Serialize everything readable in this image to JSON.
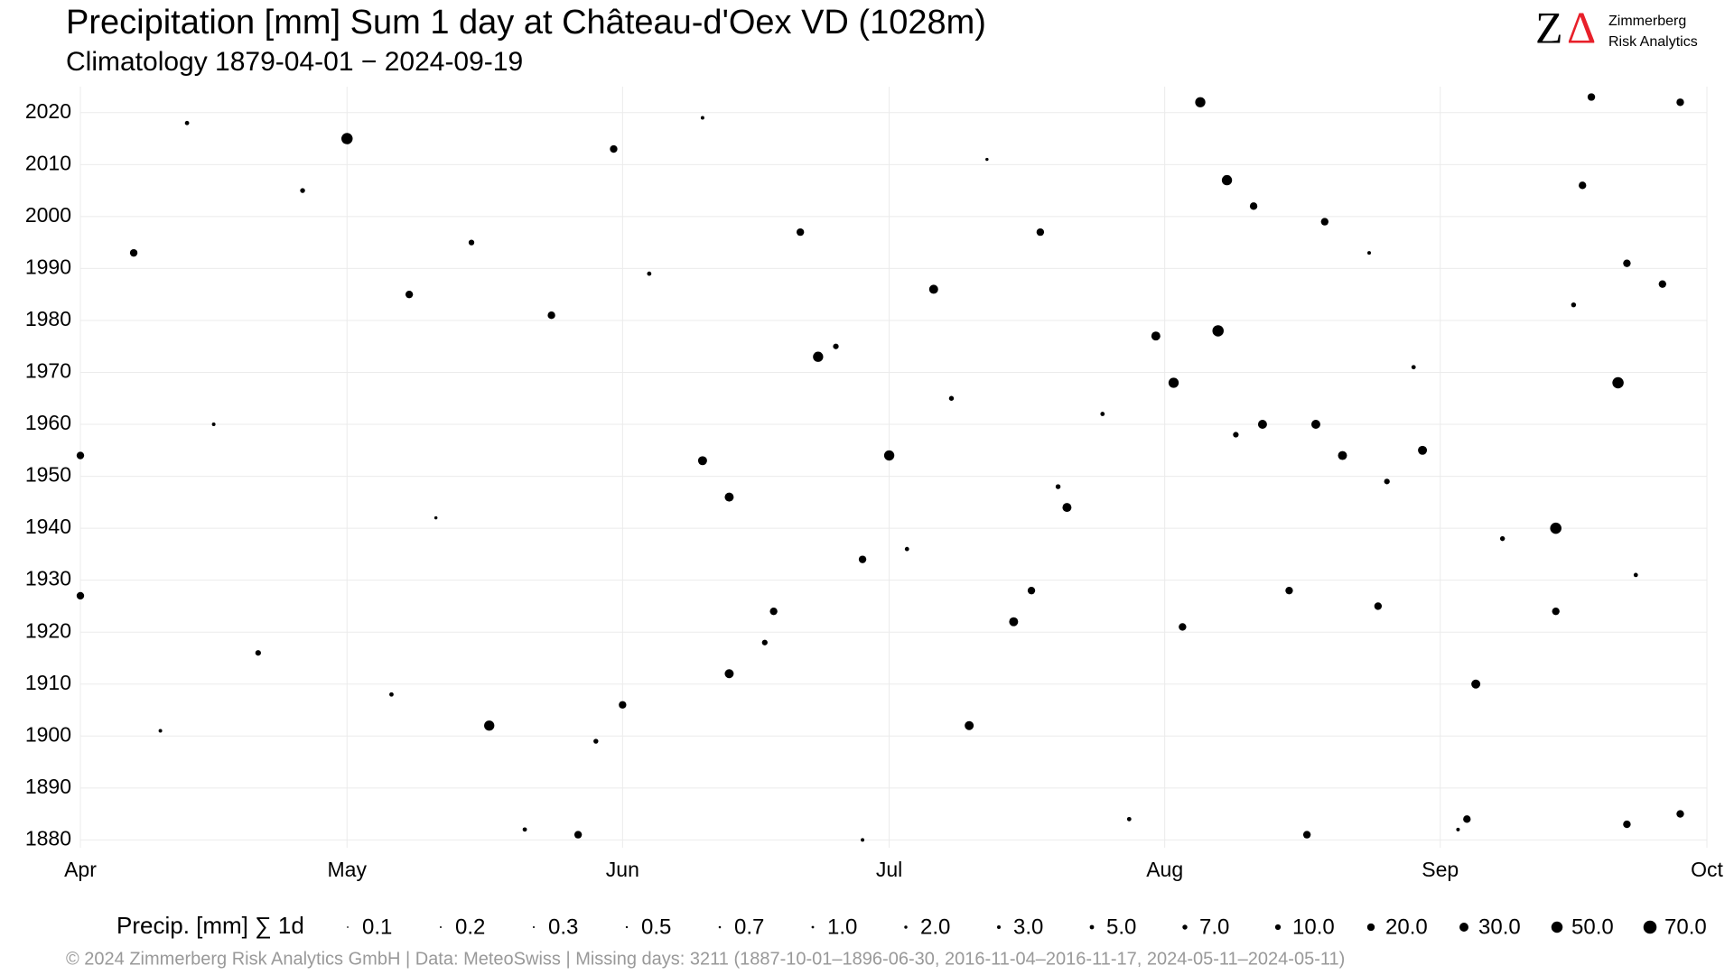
{
  "chart_data": {
    "type": "scatter",
    "title": "Precipitation [mm] Sum 1 day at Château-d'Oex  VD (1028m)",
    "subtitle": "Climatology 1879-04-01 − 2024-09-19",
    "caption": "©  2024 Zimmerberg Risk Analytics GmbH | Data: MeteoSwiss | Missing days: 3211 (1887-10-01–1896-06-30, 2016-11-04–2016-11-17, 2024-05-11–2024-05-11)",
    "logo": {
      "z": "Z",
      "delta": "Δ",
      "line1": "Zimmerberg",
      "line2": "Risk Analytics"
    },
    "xlim": [
      0,
      183
    ],
    "xticks": [
      {
        "value": 0,
        "label": "Apr"
      },
      {
        "value": 30,
        "label": "May"
      },
      {
        "value": 61,
        "label": "Jun"
      },
      {
        "value": 91,
        "label": "Jul"
      },
      {
        "value": 122,
        "label": "Aug"
      },
      {
        "value": 153,
        "label": "Sep"
      },
      {
        "value": 183,
        "label": "Oct"
      }
    ],
    "ylim": [
      1878.5,
      2025
    ],
    "yticks": [
      1880,
      1890,
      1900,
      1910,
      1920,
      1930,
      1940,
      1950,
      1960,
      1970,
      1980,
      1990,
      2000,
      2010,
      2020
    ],
    "grid": true,
    "color": "#000000",
    "series": [
      {
        "x": [
          30,
          126,
          129,
          128,
          173,
          166,
          83,
          123,
          91,
          46,
          100,
          105,
          73,
          157,
          139,
          133,
          142,
          96,
          53,
          70,
          73,
          151,
          121,
          111,
          0,
          0,
          169,
          178,
          174,
          132,
          61,
          180,
          170,
          37,
          6,
          60,
          56,
          174,
          138,
          180,
          156,
          136,
          146,
          166,
          124,
          78,
          88,
          107,
          108,
          81,
          140,
          12,
          25,
          44,
          64,
          85,
          98,
          115,
          147,
          160,
          175,
          20,
          35,
          58,
          77,
          93,
          110,
          130,
          150,
          168,
          9,
          50,
          88,
          118,
          155,
          15,
          40,
          70,
          102,
          145
        ],
        "y": [
          2015,
          2022,
          2007,
          1978,
          1968,
          1940,
          1973,
          1968,
          1954,
          1902,
          1902,
          1922,
          1912,
          1910,
          1960,
          1960,
          1954,
          1986,
          1981,
          1953,
          1946,
          1955,
          1977,
          1944,
          1954,
          1927,
          2006,
          1987,
          1991,
          2002,
          1906,
          2022,
          2023,
          1985,
          1993,
          2013,
          1881,
          1883,
          1881,
          1885,
          1884,
          1928,
          1925,
          1924,
          1921,
          1924,
          1934,
          1928,
          1997,
          1997,
          1999,
          2018,
          2005,
          1995,
          1989,
          1975,
          1965,
          1962,
          1949,
          1938,
          1931,
          1916,
          1908,
          1899,
          1918,
          1936,
          1948,
          1958,
          1971,
          1983,
          1901,
          1882,
          1880,
          1884,
          1882,
          1960,
          1942,
          2019,
          2011,
          1993
        ],
        "sizes": [
          50,
          40,
          40,
          50,
          50,
          50,
          40,
          40,
          40,
          40,
          30,
          30,
          30,
          30,
          30,
          30,
          30,
          30,
          20,
          30,
          30,
          30,
          30,
          30,
          20,
          20,
          20,
          20,
          20,
          20,
          20,
          20,
          20,
          20,
          20,
          20,
          20,
          20,
          20,
          20,
          20,
          20,
          20,
          20,
          20,
          20,
          20,
          20,
          20,
          20,
          20,
          5,
          7,
          10,
          5,
          10,
          7,
          5,
          10,
          7,
          5,
          10,
          5,
          7,
          10,
          5,
          7,
          10,
          5,
          7,
          3,
          5,
          3,
          5,
          3,
          3,
          2,
          3,
          2,
          3
        ]
      }
    ],
    "size_legend": {
      "title": "Precip. [mm] ∑ 1d",
      "values": [
        0.1,
        0.2,
        0.3,
        0.5,
        0.7,
        {
          "value": 1,
          "label": "1.0"
        },
        {
          "value": 2,
          "label": "2.0"
        },
        {
          "value": 3,
          "label": "3.0"
        },
        {
          "value": 5,
          "label": "5.0"
        },
        {
          "value": 7,
          "label": "7.0"
        },
        {
          "value": 10,
          "label": "10.0"
        },
        {
          "value": 20,
          "label": "20.0"
        },
        {
          "value": 30,
          "label": "30.0"
        },
        {
          "value": 50,
          "label": "50.0"
        },
        {
          "value": 70,
          "label": "70.0"
        }
      ]
    }
  }
}
